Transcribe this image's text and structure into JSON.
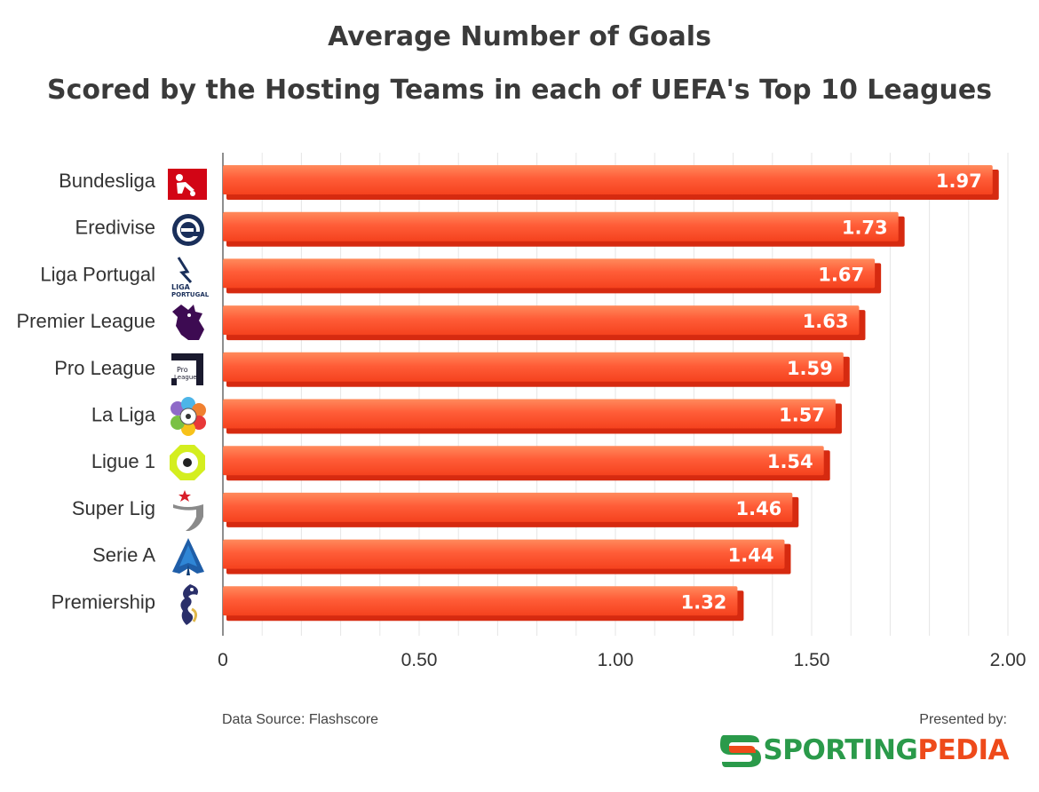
{
  "title_line1": "Average Number of Goals",
  "title_line2": "Scored by the Hosting Teams in each of UEFA's Top 10 Leagues",
  "chart_data": {
    "type": "bar",
    "orientation": "horizontal",
    "categories": [
      "Bundesliga",
      "Eredivise",
      "Liga Portugal",
      "Premier League",
      "Pro League",
      "La Liga",
      "Ligue 1",
      "Super Lig",
      "Serie A",
      "Premiership"
    ],
    "values": [
      1.97,
      1.73,
      1.67,
      1.63,
      1.59,
      1.57,
      1.54,
      1.46,
      1.44,
      1.32
    ],
    "value_labels": [
      "1.97",
      "1.73",
      "1.67",
      "1.63",
      "1.59",
      "1.57",
      "1.54",
      "1.46",
      "1.44",
      "1.32"
    ],
    "xlim": [
      0,
      2.0
    ],
    "xticks": [
      0,
      0.5,
      1.0,
      1.5,
      2.0
    ],
    "xtick_labels": [
      "0",
      "0.50",
      "1.00",
      "1.50",
      "2.00"
    ],
    "grid": true,
    "bar_color": "#ff5a36",
    "bar_shadow_color": "#d62a10"
  },
  "footer": {
    "source": "Data Source: Flashscore",
    "presented": "Presented by:",
    "brand_part1": "SPORTING",
    "brand_part2": "PEDIA"
  },
  "logo_icons": [
    "bundesliga-logo-icon",
    "eredivisie-logo-icon",
    "liga-portugal-logo-icon",
    "premier-league-logo-icon",
    "pro-league-logo-icon",
    "la-liga-logo-icon",
    "ligue-1-logo-icon",
    "super-lig-logo-icon",
    "serie-a-logo-icon",
    "premiership-logo-icon"
  ],
  "logo_texts": {
    "liga_portugal_line1": "LIGA",
    "liga_portugal_line2": "PORTUGAL",
    "pro_league_line1": "Pro",
    "pro_league_line2": "League"
  }
}
